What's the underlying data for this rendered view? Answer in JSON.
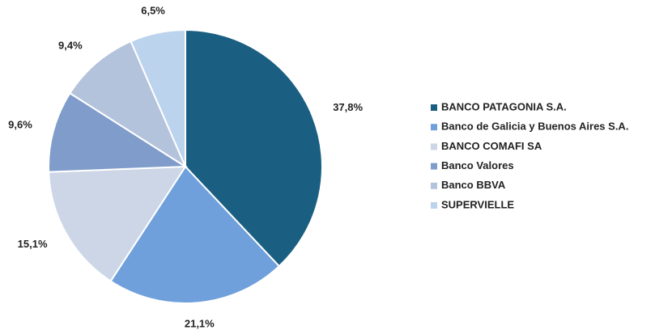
{
  "chart_data": {
    "type": "pie",
    "categories": [
      "BANCO PATAGONIA S.A.",
      "Banco de Galicia y Buenos Aires S.A.",
      "BANCO COMAFI SA",
      "Banco Valores",
      "Banco BBVA",
      "SUPERVIELLE"
    ],
    "values": [
      37.8,
      21.1,
      15.1,
      9.6,
      9.4,
      6.5
    ],
    "value_labels": [
      "37,8%",
      "21,1%",
      "15,1%",
      "9,6%",
      "9,4%",
      "6,5%"
    ],
    "colors": [
      "#1a5f82",
      "#6fa0dc",
      "#ccd6e6",
      "#7f9ccb",
      "#b4c3dc",
      "#bcd3ee"
    ],
    "legend": "right"
  }
}
